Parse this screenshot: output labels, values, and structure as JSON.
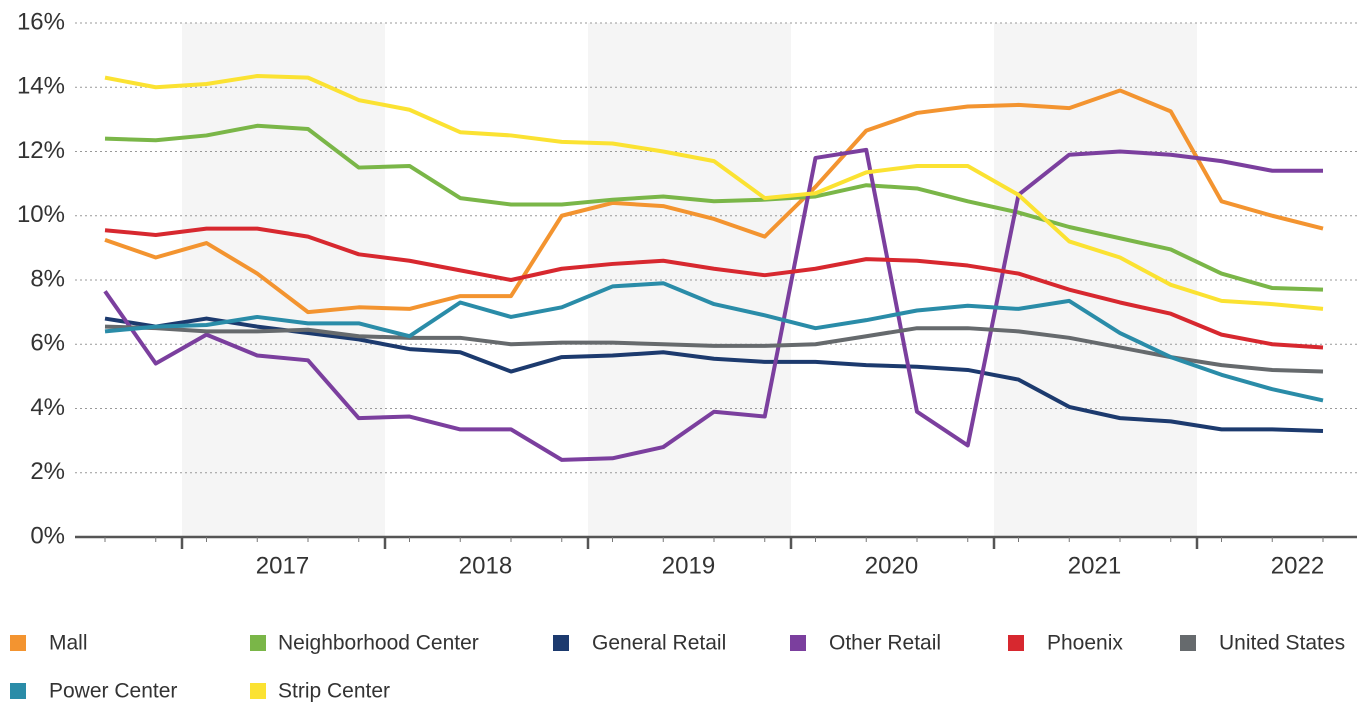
{
  "chart_data": {
    "type": "line",
    "categories": [
      null,
      null,
      null,
      null,
      null,
      null,
      null,
      null,
      null,
      null,
      null,
      null,
      null,
      null,
      null,
      null,
      null,
      null,
      null,
      null,
      null,
      null,
      null,
      null,
      null
    ],
    "year_labels": [
      "2017",
      "2018",
      "2019",
      "2020",
      "2021",
      "2022"
    ],
    "ylim": [
      0,
      16
    ],
    "yticks": [
      {
        "value": 0,
        "label": "0%"
      },
      {
        "value": 2,
        "label": "2%"
      },
      {
        "value": 4,
        "label": "4%"
      },
      {
        "value": 6,
        "label": "6%"
      },
      {
        "value": 8,
        "label": "8%"
      },
      {
        "value": 10,
        "label": "10%"
      },
      {
        "value": 12,
        "label": "12%"
      },
      {
        "value": 14,
        "label": "14%"
      },
      {
        "value": 16,
        "label": "16%"
      }
    ],
    "grid": true,
    "series": [
      {
        "name": "Mall",
        "color": "#f39430",
        "values": [
          9.25,
          8.7,
          9.15,
          8.2,
          7.0,
          7.15,
          7.1,
          7.5,
          7.5,
          10.0,
          10.4,
          10.3,
          9.9,
          9.35,
          10.9,
          12.65,
          13.2,
          13.4,
          13.45,
          13.35,
          13.9,
          13.25,
          10.45,
          10.0,
          9.6
        ]
      },
      {
        "name": "Neighborhood Center",
        "color": "#7ab648",
        "values": [
          12.4,
          12.35,
          12.5,
          12.8,
          12.7,
          11.5,
          11.55,
          10.55,
          10.35,
          10.35,
          10.5,
          10.6,
          10.45,
          10.5,
          10.6,
          10.95,
          10.85,
          10.45,
          10.1,
          9.65,
          9.3,
          8.95,
          8.2,
          7.75,
          7.7
        ]
      },
      {
        "name": "General Retail",
        "color": "#1c3a6e",
        "values": [
          6.8,
          6.55,
          6.8,
          6.55,
          6.35,
          6.15,
          5.85,
          5.75,
          5.15,
          5.6,
          5.65,
          5.75,
          5.55,
          5.45,
          5.45,
          5.35,
          5.3,
          5.2,
          4.9,
          4.05,
          3.7,
          3.6,
          3.35,
          3.35,
          3.3
        ]
      },
      {
        "name": "Other Retail",
        "color": "#7b3f9e",
        "values": [
          7.65,
          5.4,
          6.3,
          5.65,
          5.5,
          3.7,
          3.75,
          3.35,
          3.35,
          2.4,
          2.45,
          2.8,
          3.9,
          3.75,
          11.8,
          12.05,
          3.9,
          2.85,
          10.65,
          11.9,
          12.0,
          11.9,
          11.7,
          11.4,
          11.4
        ]
      },
      {
        "name": "Phoenix",
        "color": "#d7282f",
        "values": [
          9.55,
          9.4,
          9.6,
          9.6,
          9.35,
          8.8,
          8.6,
          8.3,
          8.0,
          8.35,
          8.5,
          8.6,
          8.35,
          8.15,
          8.35,
          8.65,
          8.6,
          8.45,
          8.2,
          7.7,
          7.3,
          6.95,
          6.3,
          6.0,
          5.9
        ]
      },
      {
        "name": "United States",
        "color": "#666a6d",
        "values": [
          6.55,
          6.5,
          6.4,
          6.4,
          6.45,
          6.25,
          6.2,
          6.2,
          6.0,
          6.05,
          6.05,
          6.0,
          5.95,
          5.95,
          6.0,
          6.25,
          6.5,
          6.5,
          6.4,
          6.2,
          5.9,
          5.6,
          5.35,
          5.2,
          5.15
        ]
      },
      {
        "name": "Power Center",
        "color": "#2a8ca8",
        "values": [
          6.4,
          6.55,
          6.6,
          6.85,
          6.65,
          6.65,
          6.25,
          7.3,
          6.85,
          7.15,
          7.8,
          7.9,
          7.25,
          6.9,
          6.5,
          6.75,
          7.05,
          7.2,
          7.1,
          7.35,
          6.35,
          5.6,
          5.05,
          4.6,
          4.25
        ]
      },
      {
        "name": "Strip Center",
        "color": "#fbe232",
        "values": [
          14.3,
          14.0,
          14.1,
          14.35,
          14.3,
          13.6,
          13.3,
          12.6,
          12.5,
          12.3,
          12.25,
          12.0,
          11.7,
          10.55,
          10.7,
          11.35,
          11.55,
          11.55,
          10.65,
          9.2,
          8.7,
          7.85,
          7.35,
          7.25,
          7.1
        ]
      }
    ]
  }
}
